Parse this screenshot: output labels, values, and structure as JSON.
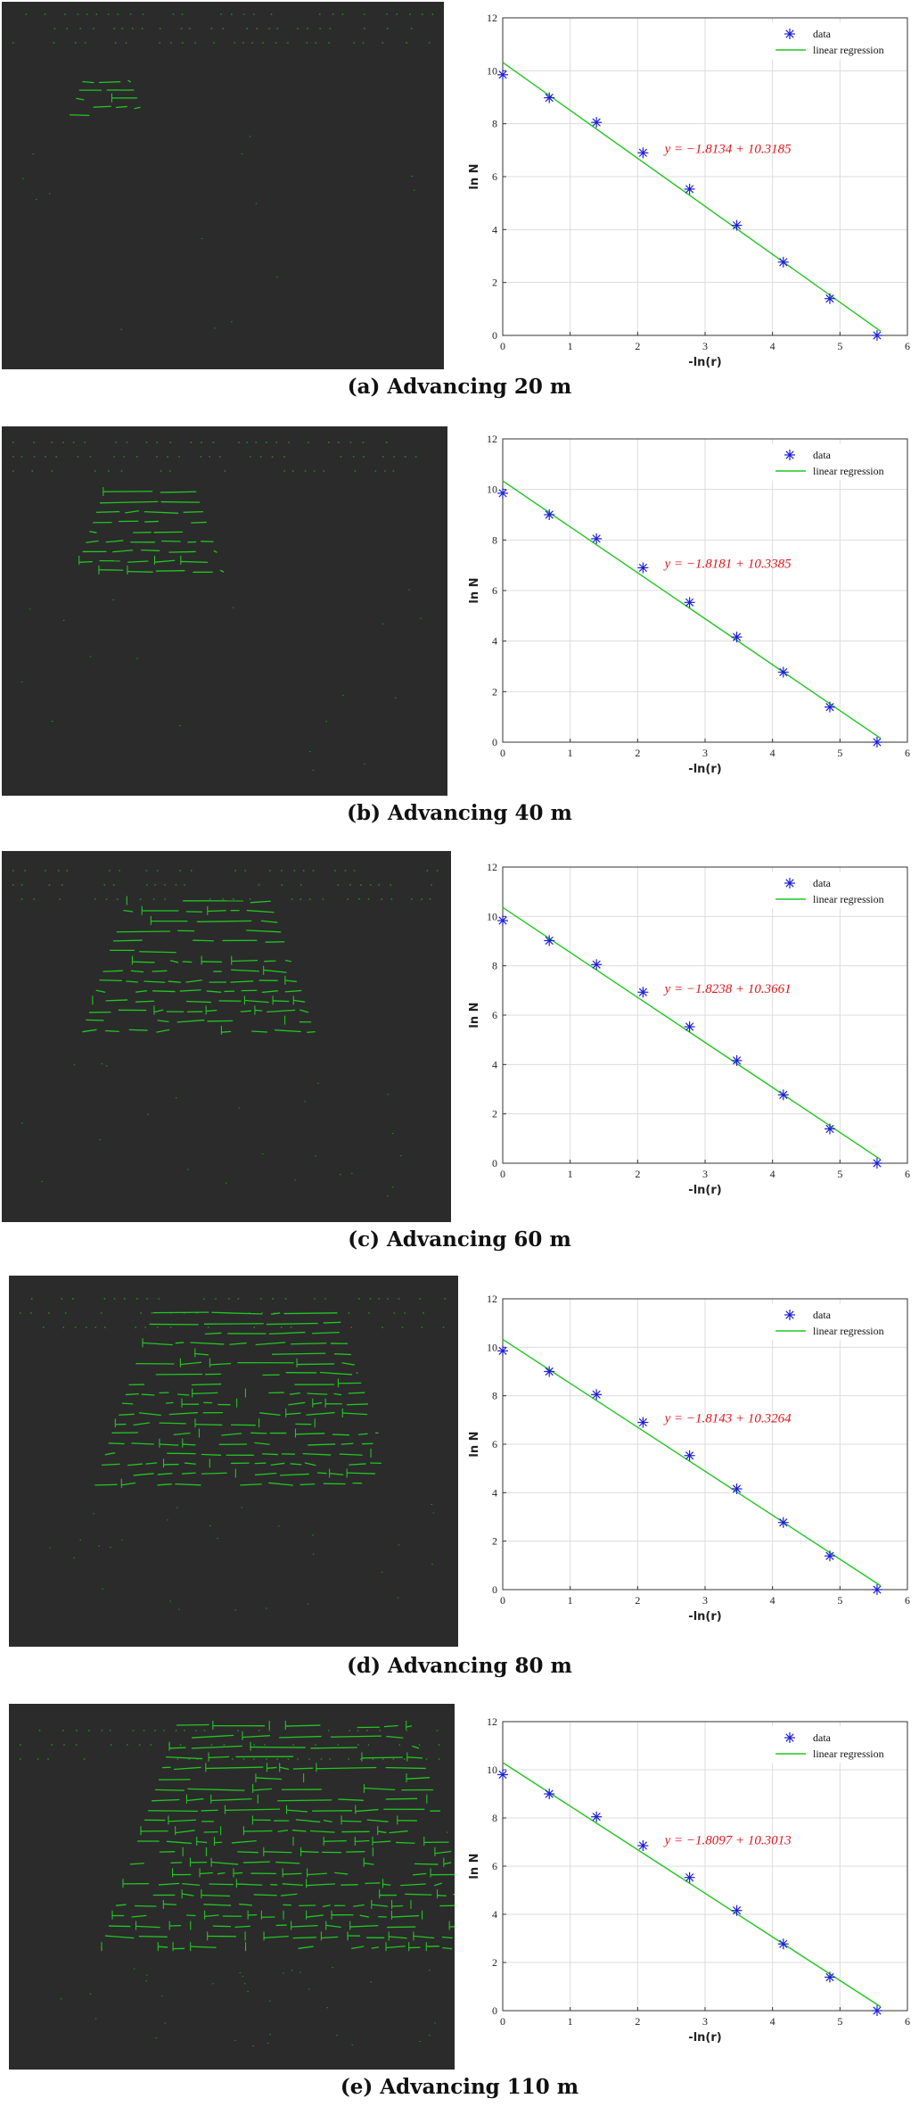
{
  "colors": {
    "background": "#ffffff",
    "fracture_panel": "#2b2b2b",
    "fracture_lines": "#22c522",
    "marker": "#1f1fd6",
    "regression_line": "#22c522",
    "equation": "#e0161b"
  },
  "panels": [
    {
      "caption": "(a)  Advancing 20 m",
      "fracture_density": 0.08,
      "chart_data": {
        "type": "scatter",
        "xlabel": "-ln(r)",
        "ylabel": "ln N",
        "xlim": [
          0,
          6
        ],
        "ylim": [
          0,
          12
        ],
        "xticks": [
          "0",
          "1",
          "2",
          "3",
          "4",
          "5",
          "6"
        ],
        "yticks": [
          "0",
          "2",
          "4",
          "6",
          "8",
          "10",
          "12"
        ],
        "grid": true,
        "legend_position": "top-right",
        "series": [
          {
            "name": "data",
            "marker": "asterisk",
            "x": [
              0,
              0.69,
              1.39,
              2.08,
              2.77,
              3.47,
              4.16,
              4.85,
              5.55
            ],
            "y": [
              9.85,
              8.98,
              8.05,
              6.9,
              5.53,
              4.16,
              2.77,
              1.39,
              0
            ]
          },
          {
            "name": "linear regression",
            "slope": -1.8134,
            "intercept": 10.3185,
            "x_range": [
              0,
              5.6
            ]
          }
        ],
        "annotation": "y = −1.8134 + 10.3185"
      }
    },
    {
      "caption": "(b)  Advancing 40 m",
      "fracture_density": 0.3,
      "chart_data": {
        "type": "scatter",
        "xlabel": "-ln(r)",
        "ylabel": "ln N",
        "xlim": [
          0,
          6
        ],
        "ylim": [
          0,
          12
        ],
        "xticks": [
          "0",
          "1",
          "2",
          "3",
          "4",
          "5",
          "6"
        ],
        "yticks": [
          "0",
          "2",
          "4",
          "6",
          "8",
          "10",
          "12"
        ],
        "grid": true,
        "legend_position": "top-right",
        "series": [
          {
            "name": "data",
            "marker": "asterisk",
            "x": [
              0,
              0.69,
              1.39,
              2.08,
              2.77,
              3.47,
              4.16,
              4.85,
              5.55
            ],
            "y": [
              9.85,
              9.0,
              8.05,
              6.9,
              5.53,
              4.16,
              2.77,
              1.39,
              0
            ]
          },
          {
            "name": "linear regression",
            "slope": -1.8181,
            "intercept": 10.3385,
            "x_range": [
              0,
              5.6
            ]
          }
        ],
        "annotation": "y = −1.8181 + 10.3385"
      }
    },
    {
      "caption": "(c)  Advancing 60 m",
      "fracture_density": 0.55,
      "chart_data": {
        "type": "scatter",
        "xlabel": "-ln(r)",
        "ylabel": "ln N",
        "xlim": [
          0,
          6
        ],
        "ylim": [
          0,
          12
        ],
        "xticks": [
          "0",
          "1",
          "2",
          "3",
          "4",
          "5",
          "6"
        ],
        "yticks": [
          "0",
          "2",
          "4",
          "6",
          "8",
          "10",
          "12"
        ],
        "grid": true,
        "legend_position": "top-right",
        "series": [
          {
            "name": "data",
            "marker": "asterisk",
            "x": [
              0,
              0.69,
              1.39,
              2.08,
              2.77,
              3.47,
              4.16,
              4.85,
              5.55
            ],
            "y": [
              9.83,
              9.02,
              8.05,
              6.93,
              5.53,
              4.16,
              2.77,
              1.39,
              0
            ]
          },
          {
            "name": "linear regression",
            "slope": -1.8238,
            "intercept": 10.3661,
            "x_range": [
              0,
              5.6
            ]
          }
        ],
        "annotation": "y = −1.8238 + 10.3661"
      }
    },
    {
      "caption": "(d)  Advancing 80 m",
      "fracture_density": 0.75,
      "chart_data": {
        "type": "scatter",
        "xlabel": "-ln(r)",
        "ylabel": "ln N",
        "xlim": [
          0,
          6
        ],
        "ylim": [
          0,
          12
        ],
        "xticks": [
          "0",
          "1",
          "2",
          "3",
          "4",
          "5",
          "6"
        ],
        "yticks": [
          "0",
          "2",
          "4",
          "6",
          "8",
          "10",
          "12"
        ],
        "grid": true,
        "legend_position": "top-right",
        "series": [
          {
            "name": "data",
            "marker": "asterisk",
            "x": [
              0,
              0.69,
              1.39,
              2.08,
              2.77,
              3.47,
              4.16,
              4.85,
              5.55
            ],
            "y": [
              9.85,
              9.0,
              8.05,
              6.9,
              5.53,
              4.16,
              2.77,
              1.39,
              0
            ]
          },
          {
            "name": "linear regression",
            "slope": -1.8143,
            "intercept": 10.3264,
            "x_range": [
              0,
              5.6
            ]
          }
        ],
        "annotation": "y = −1.8143 + 10.3264"
      }
    },
    {
      "caption": "(e)  Advancing 110 m",
      "fracture_density": 1.0,
      "chart_data": {
        "type": "scatter",
        "xlabel": "-ln(r)",
        "ylabel": "ln N",
        "xlim": [
          0,
          6
        ],
        "ylim": [
          0,
          12
        ],
        "xticks": [
          "0",
          "1",
          "2",
          "3",
          "4",
          "5",
          "6"
        ],
        "yticks": [
          "0",
          "2",
          "4",
          "6",
          "8",
          "10",
          "12"
        ],
        "grid": true,
        "legend_position": "top-right",
        "series": [
          {
            "name": "data",
            "marker": "asterisk",
            "x": [
              0,
              0.69,
              1.39,
              2.08,
              2.77,
              3.47,
              4.16,
              4.85,
              5.55
            ],
            "y": [
              9.8,
              9.0,
              8.05,
              6.85,
              5.53,
              4.16,
              2.77,
              1.39,
              0
            ]
          },
          {
            "name": "linear regression",
            "slope": -1.8097,
            "intercept": 10.3013,
            "x_range": [
              0,
              5.6
            ]
          }
        ],
        "annotation": "y = −1.8097 + 10.3013"
      }
    }
  ]
}
